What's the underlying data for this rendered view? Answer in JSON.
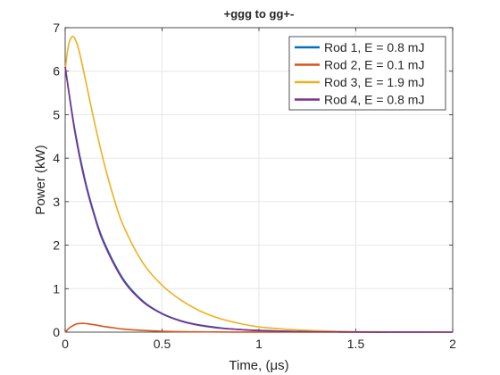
{
  "chart_data": {
    "type": "line",
    "title": "+ggg to gg+-",
    "xlabel": "Time, (μs)",
    "ylabel": "Power (kW)",
    "xlim": [
      0,
      2
    ],
    "ylim": [
      0,
      7
    ],
    "xticks": [
      0,
      0.5,
      1,
      1.5,
      2
    ],
    "xtick_labels": [
      "0",
      "0.5",
      "1",
      "1.5",
      "2"
    ],
    "yticks": [
      0,
      1,
      2,
      3,
      4,
      5,
      6,
      7
    ],
    "ytick_labels": [
      "0",
      "1",
      "2",
      "3",
      "4",
      "5",
      "6",
      "7"
    ],
    "grid": true,
    "legend_position": "top-right",
    "series": [
      {
        "name": "Rod 1, E = 0.8 mJ",
        "color": "#0072BD",
        "x": [
          0,
          0.05,
          0.1,
          0.15,
          0.2,
          0.3,
          0.4,
          0.5,
          0.6,
          0.7,
          0.8,
          0.9,
          1.0,
          1.2,
          1.4,
          1.6,
          1.8,
          2.0
        ],
        "y": [
          6.1,
          4.65,
          3.55,
          2.72,
          2.08,
          1.22,
          0.72,
          0.43,
          0.26,
          0.16,
          0.1,
          0.06,
          0.04,
          0.015,
          0.005,
          0.002,
          0.001,
          0.0
        ]
      },
      {
        "name": "Rod 2, E = 0.1 mJ",
        "color": "#D95319",
        "x": [
          0,
          0.02,
          0.04,
          0.06,
          0.08,
          0.1,
          0.12,
          0.15,
          0.2,
          0.25,
          0.3,
          0.4,
          0.5,
          0.6,
          0.8,
          1.0,
          1.5,
          2.0
        ],
        "y": [
          0.0,
          0.09,
          0.15,
          0.19,
          0.2,
          0.2,
          0.19,
          0.17,
          0.13,
          0.1,
          0.07,
          0.04,
          0.02,
          0.01,
          0.003,
          0.001,
          0.0,
          0.0
        ]
      },
      {
        "name": "Rod 3, E = 1.9 mJ",
        "color": "#EDB120",
        "x": [
          0,
          0.01,
          0.02,
          0.03,
          0.04,
          0.05,
          0.07,
          0.1,
          0.15,
          0.2,
          0.25,
          0.3,
          0.4,
          0.5,
          0.6,
          0.7,
          0.8,
          0.9,
          1.0,
          1.1,
          1.2,
          1.4,
          1.6,
          1.8,
          2.0
        ],
        "y": [
          6.0,
          6.4,
          6.65,
          6.76,
          6.8,
          6.75,
          6.5,
          5.9,
          4.85,
          3.9,
          3.1,
          2.45,
          1.6,
          1.08,
          0.73,
          0.48,
          0.31,
          0.2,
          0.12,
          0.08,
          0.05,
          0.02,
          0.008,
          0.003,
          0.001
        ]
      },
      {
        "name": "Rod 4, E = 0.8 mJ",
        "color": "#7E2F8E",
        "x": [
          0,
          0.05,
          0.1,
          0.15,
          0.2,
          0.3,
          0.4,
          0.5,
          0.6,
          0.7,
          0.8,
          0.9,
          1.0,
          1.2,
          1.4,
          1.6,
          1.8,
          2.0
        ],
        "y": [
          6.1,
          4.6,
          3.5,
          2.68,
          2.04,
          1.19,
          0.7,
          0.42,
          0.25,
          0.15,
          0.09,
          0.06,
          0.035,
          0.013,
          0.005,
          0.002,
          0.001,
          0.0
        ]
      }
    ]
  }
}
